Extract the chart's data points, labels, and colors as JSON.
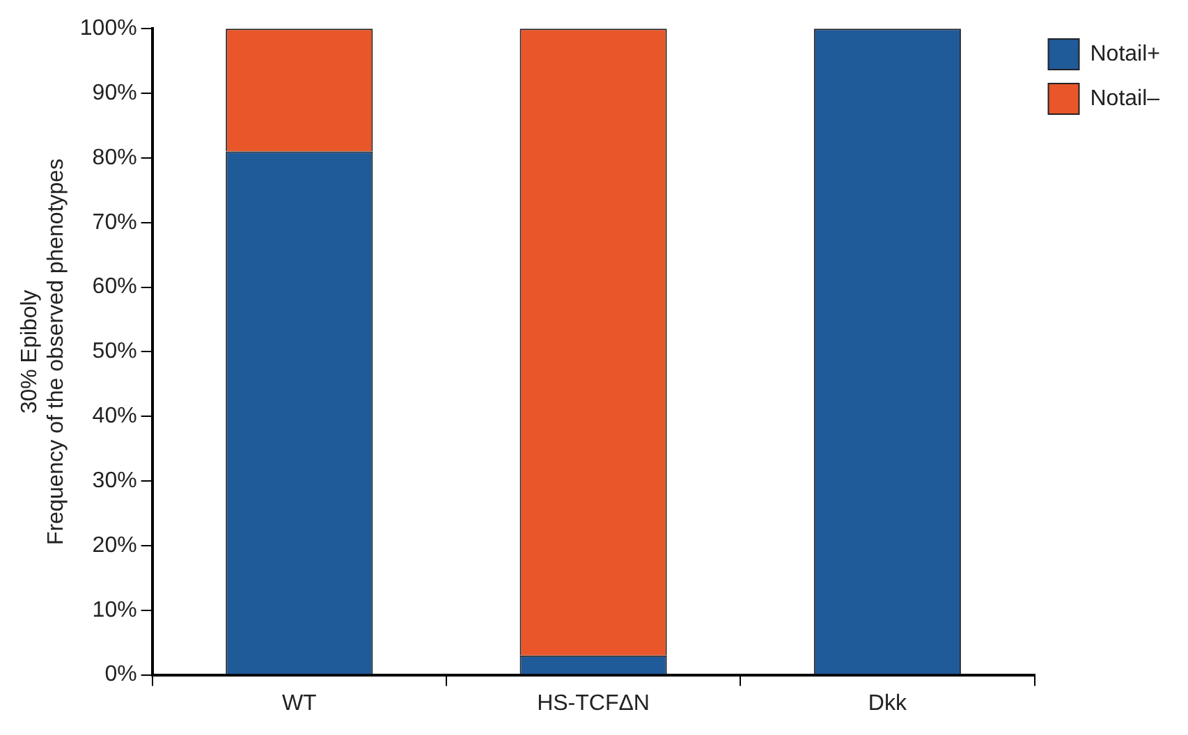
{
  "chart_data": {
    "type": "bar",
    "stacked": true,
    "ylabel": "30% Epiboly\nFrequency of the observed phenotypes",
    "categories": [
      "WT",
      "HS-TCFΔN",
      "Dkk"
    ],
    "series": [
      {
        "name": "Notail+",
        "color": "#1f5a99",
        "values": [
          81,
          3,
          100
        ]
      },
      {
        "name": "Notail–",
        "color": "#e8562a",
        "values": [
          19,
          97,
          0
        ]
      }
    ],
    "ylim": [
      0,
      100
    ],
    "yticks": [
      {
        "value": 0,
        "label": "0%"
      },
      {
        "value": 10,
        "label": "10%"
      },
      {
        "value": 20,
        "label": "20%"
      },
      {
        "value": 30,
        "label": "30%"
      },
      {
        "value": 40,
        "label": "40%"
      },
      {
        "value": 50,
        "label": "50%"
      },
      {
        "value": 60,
        "label": "60%"
      },
      {
        "value": 70,
        "label": "70%"
      },
      {
        "value": 80,
        "label": "80%"
      },
      {
        "value": 90,
        "label": "90%"
      },
      {
        "value": 100,
        "label": "100%"
      }
    ],
    "grid": false,
    "legend": "top right"
  }
}
